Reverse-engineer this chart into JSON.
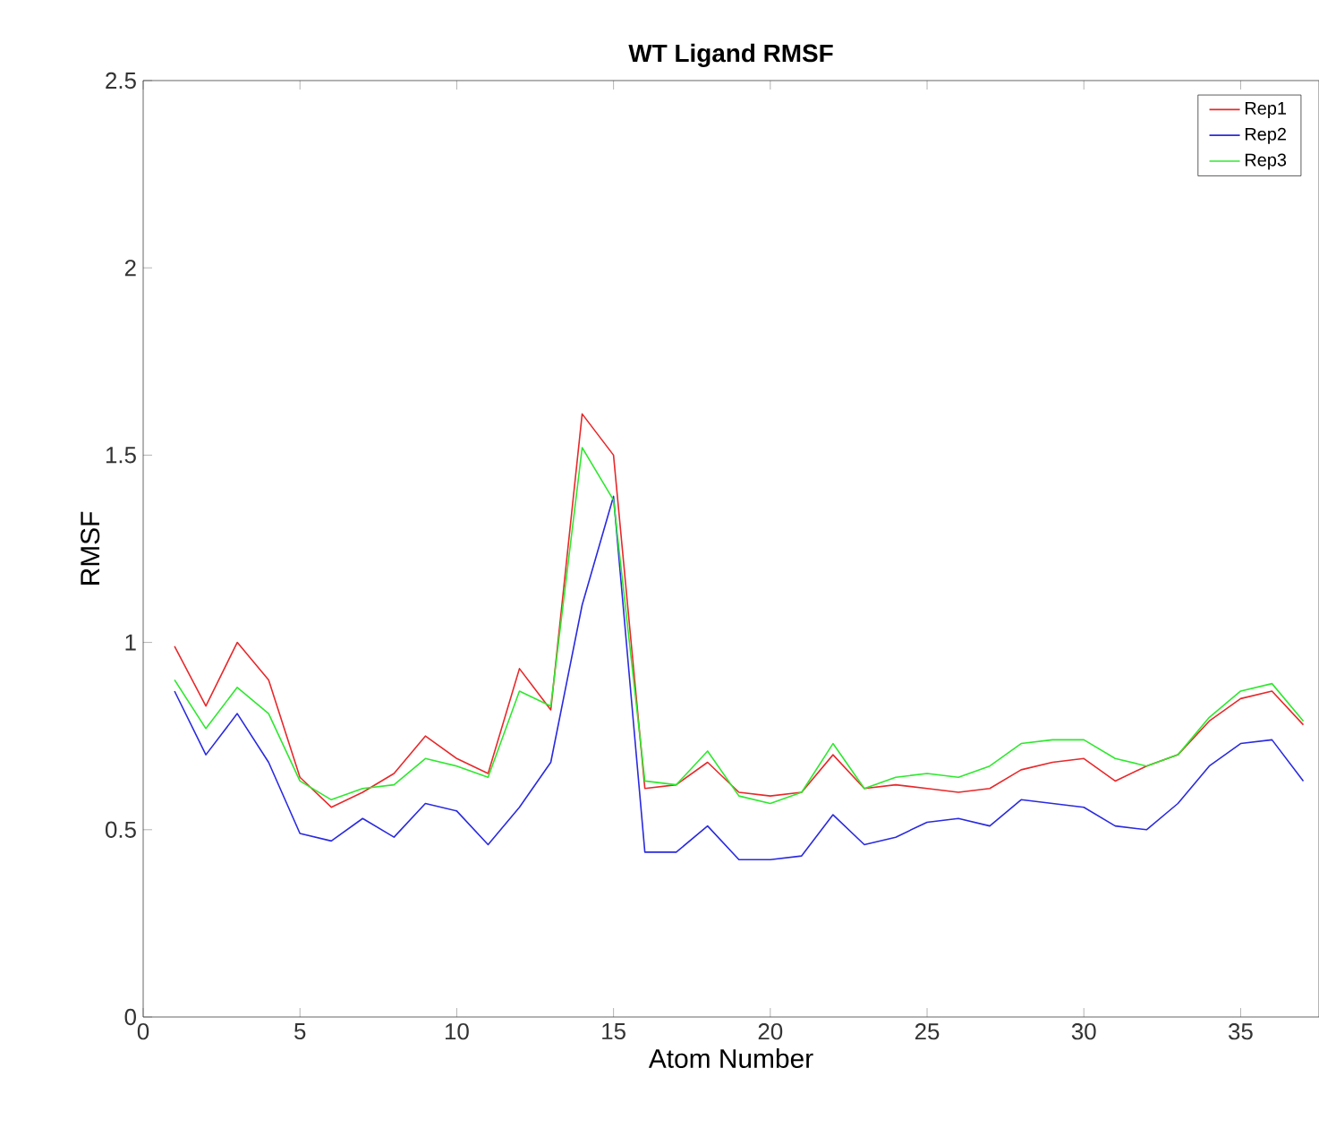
{
  "chart_data": {
    "type": "line",
    "title": "WT Ligand RMSF",
    "xlabel": "Atom Number",
    "ylabel": "RMSF",
    "x": [
      1,
      2,
      3,
      4,
      5,
      6,
      7,
      8,
      9,
      10,
      11,
      12,
      13,
      14,
      15,
      16,
      17,
      18,
      19,
      20,
      21,
      22,
      23,
      24,
      25,
      26,
      27,
      28,
      29,
      30,
      31,
      32,
      33,
      34,
      35,
      36,
      37
    ],
    "series": [
      {
        "name": "Rep1",
        "color": "#e8282a",
        "values": [
          0.99,
          0.83,
          1.0,
          0.9,
          0.64,
          0.56,
          0.6,
          0.65,
          0.75,
          0.69,
          0.65,
          0.93,
          0.82,
          1.61,
          1.5,
          0.61,
          0.62,
          0.68,
          0.6,
          0.59,
          0.6,
          0.7,
          0.61,
          0.62,
          0.61,
          0.6,
          0.61,
          0.66,
          0.68,
          0.69,
          0.63,
          0.67,
          0.7,
          0.79,
          0.85,
          0.87,
          0.78
        ]
      },
      {
        "name": "Rep2",
        "color": "#2a2ae0",
        "values": [
          0.87,
          0.7,
          0.81,
          0.68,
          0.49,
          0.47,
          0.53,
          0.48,
          0.57,
          0.55,
          0.46,
          0.56,
          0.68,
          1.1,
          1.39,
          0.44,
          0.44,
          0.51,
          0.42,
          0.42,
          0.43,
          0.54,
          0.46,
          0.48,
          0.52,
          0.53,
          0.51,
          0.58,
          0.57,
          0.56,
          0.51,
          0.5,
          0.57,
          0.67,
          0.73,
          0.74,
          0.63
        ]
      },
      {
        "name": "Rep3",
        "color": "#2ee82e",
        "values": [
          0.9,
          0.77,
          0.88,
          0.81,
          0.63,
          0.58,
          0.61,
          0.62,
          0.69,
          0.67,
          0.64,
          0.87,
          0.83,
          1.52,
          1.38,
          0.63,
          0.62,
          0.71,
          0.59,
          0.57,
          0.6,
          0.73,
          0.61,
          0.64,
          0.65,
          0.64,
          0.67,
          0.73,
          0.74,
          0.74,
          0.69,
          0.67,
          0.7,
          0.8,
          0.87,
          0.89,
          0.79
        ]
      }
    ],
    "xlim": [
      0,
      37.5
    ],
    "ylim": [
      0,
      2.5
    ],
    "xticks": [
      0,
      5,
      10,
      15,
      20,
      25,
      30,
      35
    ],
    "yticks": [
      0,
      0.5,
      1,
      1.5,
      2,
      2.5
    ],
    "grid": false,
    "legend": "top right",
    "marker": "none",
    "line_style": "solid"
  }
}
